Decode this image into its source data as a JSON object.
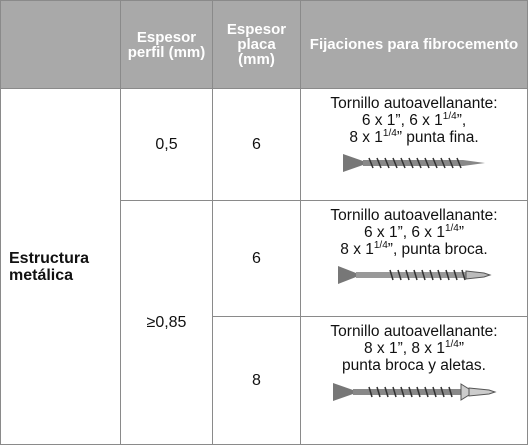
{
  "table": {
    "header": [
      "Espesor perfil (mm)",
      "Espesor placa (mm)",
      "Fijaciones para fibrocemento"
    ],
    "row_label": "Estructura metálica",
    "rows": [
      {
        "perfil": "0,5",
        "placa": "6",
        "lines": [
          [
            {
              "text": "Tornillo autoavellanante:"
            }
          ],
          [
            {
              "text": "6 x 1”, 6 x 1"
            },
            {
              "text": "1/4",
              "sup": true
            },
            {
              "text": "”,"
            }
          ],
          [
            {
              "text": "8 x 1"
            },
            {
              "text": "1/4",
              "sup": true
            },
            {
              "text": "” punta fina."
            }
          ]
        ]
      },
      {
        "perfil": "≥0,85",
        "placa": "6",
        "lines": [
          [
            {
              "text": "Tornillo autoavellanante:"
            }
          ],
          [
            {
              "text": "6 x 1”, 6 x 1"
            },
            {
              "text": "1/4",
              "sup": true
            },
            {
              "text": "”"
            }
          ],
          [
            {
              "text": "8 x 1"
            },
            {
              "text": "1/4",
              "sup": true
            },
            {
              "text": "”, punta broca."
            }
          ]
        ]
      },
      {
        "placa": "8",
        "lines": [
          [
            {
              "text": "Tornillo autoavellanante:"
            }
          ],
          [
            {
              "text": "8 x 1”, 8 x 1"
            },
            {
              "text": "1/4",
              "sup": true
            },
            {
              "text": "”"
            }
          ],
          [
            {
              "text": "punta broca y aletas."
            }
          ]
        ]
      }
    ]
  }
}
